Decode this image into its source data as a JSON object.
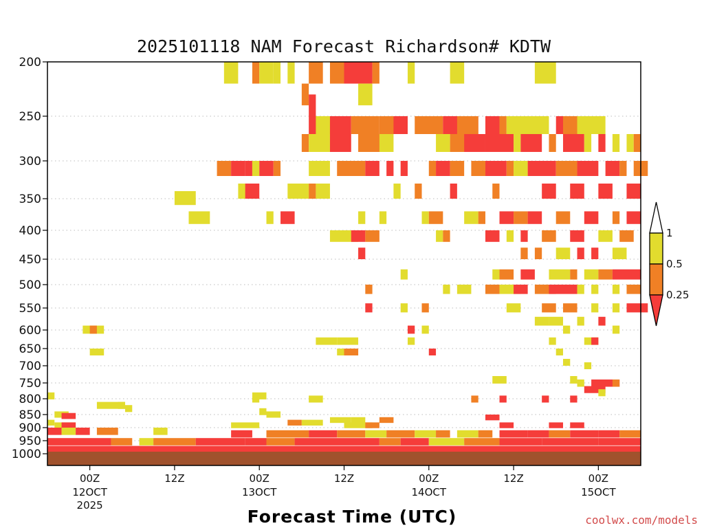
{
  "chart_data": {
    "type": "heatmap",
    "title": "2025101118 NAM Forecast Richardson# KDTW",
    "xlabel": "Forecast Time (UTC)",
    "ylabel": "",
    "y_ticks": [
      "200",
      "250",
      "300",
      "350",
      "400",
      "450",
      "500",
      "550",
      "600",
      "650",
      "700",
      "750",
      "800",
      "850",
      "900",
      "950",
      "1000"
    ],
    "x_ticks": [
      {
        "hour": 6,
        "label": "00Z",
        "sub": "12OCT",
        "sub2": "2025"
      },
      {
        "hour": 18,
        "label": "12Z"
      },
      {
        "hour": 30,
        "label": "00Z",
        "sub": "13OCT"
      },
      {
        "hour": 42,
        "label": "12Z"
      },
      {
        "hour": 54,
        "label": "00Z",
        "sub": "14OCT"
      },
      {
        "hour": 66,
        "label": "12Z"
      },
      {
        "hour": 78,
        "label": "00Z",
        "sub": "15OCT"
      }
    ],
    "xlim_hours": [
      0,
      84
    ],
    "ylim_hpa": [
      200,
      1020
    ],
    "legend": [
      {
        "label": "1",
        "color": "#ffffff"
      },
      {
        "label": "0.5",
        "color": "#e2dc2e"
      },
      {
        "label": "0.25",
        "color": "#f08025"
      },
      {
        "label": "",
        "color": "#f53d3a"
      }
    ],
    "colors": {
      "lt_0_25": "#f53d3a",
      "0_25_to_0_5": "#f08025",
      "0_5_to_1": "#e2dc2e",
      "ground": "#a0522d",
      "grid": "#bbbbbb"
    },
    "cells": [
      [
        25,
        200,
        2,
        "y"
      ],
      [
        29,
        200,
        1,
        "o"
      ],
      [
        30,
        200,
        2,
        "y"
      ],
      [
        32,
        200,
        1,
        "y"
      ],
      [
        34,
        200,
        1,
        "y"
      ],
      [
        37,
        200,
        2,
        "o"
      ],
      [
        40,
        200,
        2,
        "o"
      ],
      [
        42,
        200,
        4,
        "r"
      ],
      [
        46,
        200,
        1,
        "o"
      ],
      [
        51,
        200,
        1,
        "y"
      ],
      [
        57,
        200,
        2,
        "y"
      ],
      [
        69,
        200,
        3,
        "y"
      ],
      [
        36,
        220,
        1,
        "o"
      ],
      [
        44,
        220,
        2,
        "y"
      ],
      [
        37,
        230,
        1,
        "r"
      ],
      [
        37,
        250,
        6,
        "r"
      ],
      [
        38,
        250,
        2,
        "y"
      ],
      [
        43,
        250,
        4,
        "o"
      ],
      [
        47,
        250,
        4,
        "o"
      ],
      [
        49,
        250,
        2,
        "r"
      ],
      [
        52,
        250,
        4,
        "o"
      ],
      [
        56,
        250,
        5,
        "r"
      ],
      [
        58,
        250,
        3,
        "o"
      ],
      [
        62,
        250,
        2,
        "r"
      ],
      [
        64,
        250,
        1,
        "o"
      ],
      [
        65,
        250,
        3,
        "y"
      ],
      [
        67,
        250,
        4,
        "y"
      ],
      [
        72,
        250,
        3,
        "r"
      ],
      [
        73,
        250,
        3,
        "o"
      ],
      [
        75,
        250,
        4,
        "y"
      ],
      [
        36,
        270,
        1,
        "o"
      ],
      [
        37,
        270,
        3,
        "y"
      ],
      [
        40,
        270,
        3,
        "r"
      ],
      [
        44,
        270,
        4,
        "o"
      ],
      [
        47,
        270,
        2,
        "y"
      ],
      [
        55,
        270,
        2,
        "y"
      ],
      [
        57,
        270,
        3,
        "o"
      ],
      [
        59,
        270,
        3,
        "r"
      ],
      [
        62,
        270,
        4,
        "r"
      ],
      [
        66,
        270,
        1,
        "y"
      ],
      [
        67,
        270,
        3,
        "r"
      ],
      [
        71,
        270,
        1,
        "o"
      ],
      [
        73,
        270,
        3,
        "r"
      ],
      [
        76,
        270,
        1,
        "y"
      ],
      [
        78,
        270,
        1,
        "r"
      ],
      [
        80,
        270,
        1,
        "y"
      ],
      [
        82,
        270,
        1,
        "y"
      ],
      [
        83,
        270,
        1,
        "o"
      ],
      [
        24,
        300,
        2,
        "o"
      ],
      [
        26,
        300,
        2,
        "r"
      ],
      [
        28,
        300,
        1,
        "r"
      ],
      [
        29,
        300,
        1,
        "y"
      ],
      [
        30,
        300,
        2,
        "r"
      ],
      [
        32,
        300,
        1,
        "o"
      ],
      [
        37,
        300,
        3,
        "y"
      ],
      [
        41,
        300,
        4,
        "o"
      ],
      [
        45,
        300,
        2,
        "r"
      ],
      [
        48,
        300,
        1,
        "r"
      ],
      [
        50,
        300,
        1,
        "r"
      ],
      [
        54,
        300,
        1,
        "o"
      ],
      [
        55,
        300,
        2,
        "r"
      ],
      [
        57,
        300,
        2,
        "o"
      ],
      [
        60,
        300,
        2,
        "o"
      ],
      [
        62,
        300,
        3,
        "r"
      ],
      [
        65,
        300,
        1,
        "o"
      ],
      [
        66,
        300,
        2,
        "y"
      ],
      [
        68,
        300,
        4,
        "r"
      ],
      [
        72,
        300,
        3,
        "o"
      ],
      [
        75,
        300,
        3,
        "r"
      ],
      [
        79,
        300,
        2,
        "r"
      ],
      [
        81,
        300,
        1,
        "o"
      ],
      [
        83,
        300,
        2,
        "o"
      ],
      [
        27,
        330,
        2,
        "y"
      ],
      [
        28,
        330,
        2,
        "r"
      ],
      [
        34,
        330,
        3,
        "y"
      ],
      [
        37,
        330,
        1,
        "o"
      ],
      [
        38,
        330,
        2,
        "y"
      ],
      [
        49,
        330,
        1,
        "y"
      ],
      [
        52,
        330,
        1,
        "o"
      ],
      [
        57,
        330,
        1,
        "r"
      ],
      [
        63,
        330,
        1,
        "o"
      ],
      [
        70,
        330,
        2,
        "r"
      ],
      [
        74,
        330,
        2,
        "r"
      ],
      [
        78,
        330,
        2,
        "r"
      ],
      [
        82,
        330,
        2,
        "r"
      ],
      [
        18,
        340,
        3,
        "y"
      ],
      [
        20,
        370,
        3,
        "y"
      ],
      [
        31,
        370,
        1,
        "y"
      ],
      [
        33,
        370,
        2,
        "r"
      ],
      [
        44,
        370,
        1,
        "y"
      ],
      [
        47,
        370,
        1,
        "y"
      ],
      [
        53,
        370,
        1,
        "y"
      ],
      [
        54,
        370,
        2,
        "o"
      ],
      [
        59,
        370,
        2,
        "y"
      ],
      [
        61,
        370,
        1,
        "o"
      ],
      [
        64,
        370,
        2,
        "r"
      ],
      [
        66,
        370,
        2,
        "o"
      ],
      [
        68,
        370,
        2,
        "r"
      ],
      [
        72,
        370,
        2,
        "o"
      ],
      [
        76,
        370,
        2,
        "r"
      ],
      [
        80,
        370,
        1,
        "o"
      ],
      [
        82,
        370,
        2,
        "r"
      ],
      [
        40,
        400,
        4,
        "y"
      ],
      [
        43,
        400,
        2,
        "r"
      ],
      [
        45,
        400,
        2,
        "o"
      ],
      [
        55,
        400,
        1,
        "y"
      ],
      [
        56,
        400,
        1,
        "o"
      ],
      [
        62,
        400,
        2,
        "r"
      ],
      [
        65,
        400,
        1,
        "y"
      ],
      [
        67,
        400,
        1,
        "r"
      ],
      [
        70,
        400,
        2,
        "o"
      ],
      [
        74,
        400,
        2,
        "r"
      ],
      [
        78,
        400,
        2,
        "y"
      ],
      [
        81,
        400,
        2,
        "o"
      ],
      [
        44,
        430,
        1,
        "r"
      ],
      [
        67,
        430,
        1,
        "o"
      ],
      [
        69,
        430,
        1,
        "o"
      ],
      [
        72,
        430,
        2,
        "y"
      ],
      [
        75,
        430,
        1,
        "r"
      ],
      [
        77,
        430,
        1,
        "r"
      ],
      [
        80,
        430,
        2,
        "y"
      ],
      [
        50,
        470,
        1,
        "y"
      ],
      [
        63,
        470,
        1,
        "y"
      ],
      [
        64,
        470,
        2,
        "o"
      ],
      [
        67,
        470,
        2,
        "r"
      ],
      [
        71,
        470,
        3,
        "y"
      ],
      [
        74,
        470,
        1,
        "o"
      ],
      [
        76,
        470,
        2,
        "y"
      ],
      [
        78,
        470,
        2,
        "o"
      ],
      [
        80,
        470,
        4,
        "r"
      ],
      [
        45,
        500,
        1,
        "o"
      ],
      [
        56,
        500,
        1,
        "y"
      ],
      [
        58,
        500,
        2,
        "y"
      ],
      [
        62,
        500,
        2,
        "o"
      ],
      [
        64,
        500,
        3,
        "y"
      ],
      [
        66,
        500,
        2,
        "r"
      ],
      [
        69,
        500,
        3,
        "o"
      ],
      [
        71,
        500,
        4,
        "r"
      ],
      [
        75,
        500,
        1,
        "y"
      ],
      [
        77,
        500,
        1,
        "y"
      ],
      [
        80,
        500,
        1,
        "y"
      ],
      [
        82,
        500,
        2,
        "o"
      ],
      [
        45,
        540,
        1,
        "r"
      ],
      [
        50,
        540,
        1,
        "y"
      ],
      [
        53,
        540,
        1,
        "o"
      ],
      [
        65,
        540,
        2,
        "y"
      ],
      [
        70,
        540,
        2,
        "o"
      ],
      [
        73,
        540,
        2,
        "o"
      ],
      [
        77,
        540,
        1,
        "y"
      ],
      [
        80,
        540,
        1,
        "y"
      ],
      [
        82,
        540,
        3,
        "r"
      ],
      [
        69,
        570,
        2,
        "y"
      ],
      [
        71,
        570,
        2,
        "y"
      ],
      [
        75,
        570,
        1,
        "y"
      ],
      [
        78,
        570,
        1,
        "r"
      ],
      [
        5,
        590,
        3,
        "y"
      ],
      [
        6,
        590,
        1,
        "o"
      ],
      [
        51,
        590,
        1,
        "r"
      ],
      [
        53,
        590,
        1,
        "y"
      ],
      [
        73,
        590,
        1,
        "y"
      ],
      [
        80,
        590,
        1,
        "y"
      ],
      [
        38,
        620,
        3,
        "y"
      ],
      [
        41,
        620,
        3,
        "y"
      ],
      [
        51,
        620,
        1,
        "y"
      ],
      [
        71,
        620,
        1,
        "y"
      ],
      [
        76,
        620,
        2,
        "y"
      ],
      [
        77,
        620,
        1,
        "r"
      ],
      [
        6,
        650,
        2,
        "y"
      ],
      [
        41,
        650,
        3,
        "y"
      ],
      [
        42,
        650,
        2,
        "o"
      ],
      [
        54,
        650,
        1,
        "r"
      ],
      [
        72,
        650,
        1,
        "y"
      ],
      [
        73,
        680,
        1,
        "y"
      ],
      [
        76,
        690,
        1,
        "y"
      ],
      [
        63,
        730,
        2,
        "y"
      ],
      [
        74,
        730,
        1,
        "y"
      ],
      [
        75,
        740,
        1,
        "y"
      ],
      [
        77,
        740,
        4,
        "r"
      ],
      [
        80,
        740,
        1,
        "o"
      ],
      [
        76,
        760,
        3,
        "r"
      ],
      [
        78,
        770,
        1,
        "y"
      ],
      [
        0,
        780,
        1,
        "y"
      ],
      [
        29,
        780,
        2,
        "y"
      ],
      [
        29,
        790,
        1,
        "y"
      ],
      [
        37,
        790,
        2,
        "y"
      ],
      [
        60,
        790,
        1,
        "o"
      ],
      [
        64,
        790,
        1,
        "r"
      ],
      [
        70,
        790,
        1,
        "r"
      ],
      [
        74,
        790,
        1,
        "r"
      ],
      [
        7,
        810,
        4,
        "y"
      ],
      [
        10,
        810,
        1,
        "y"
      ],
      [
        11,
        820,
        1,
        "y"
      ],
      [
        1,
        840,
        2,
        "y"
      ],
      [
        2,
        845,
        2,
        "r"
      ],
      [
        30,
        830,
        1,
        "y"
      ],
      [
        31,
        840,
        2,
        "y"
      ],
      [
        62,
        850,
        2,
        "r"
      ],
      [
        40,
        860,
        3,
        "y"
      ],
      [
        43,
        860,
        2,
        "y"
      ],
      [
        47,
        860,
        2,
        "o"
      ],
      [
        0,
        870,
        1,
        "y"
      ],
      [
        1,
        880,
        3,
        "y"
      ],
      [
        2,
        880,
        2,
        "r"
      ],
      [
        26,
        880,
        4,
        "y"
      ],
      [
        34,
        870,
        2,
        "o"
      ],
      [
        36,
        870,
        3,
        "y"
      ],
      [
        42,
        880,
        4,
        "y"
      ],
      [
        45,
        880,
        2,
        "o"
      ],
      [
        64,
        880,
        2,
        "r"
      ],
      [
        71,
        880,
        2,
        "r"
      ],
      [
        74,
        880,
        2,
        "r"
      ],
      [
        0,
        900,
        2,
        "r"
      ],
      [
        2,
        900,
        2,
        "y"
      ],
      [
        4,
        900,
        2,
        "r"
      ],
      [
        7,
        900,
        3,
        "o"
      ],
      [
        15,
        900,
        2,
        "y"
      ],
      [
        26,
        910,
        3,
        "r"
      ],
      [
        31,
        910,
        6,
        "o"
      ],
      [
        37,
        910,
        4,
        "r"
      ],
      [
        41,
        910,
        4,
        "o"
      ],
      [
        45,
        910,
        3,
        "y"
      ],
      [
        48,
        910,
        4,
        "o"
      ],
      [
        52,
        910,
        3,
        "y"
      ],
      [
        55,
        910,
        2,
        "o"
      ],
      [
        58,
        910,
        3,
        "y"
      ],
      [
        61,
        910,
        2,
        "o"
      ],
      [
        64,
        910,
        4,
        "r"
      ],
      [
        68,
        910,
        3,
        "r"
      ],
      [
        71,
        910,
        3,
        "o"
      ],
      [
        74,
        910,
        4,
        "r"
      ],
      [
        78,
        910,
        3,
        "r"
      ],
      [
        81,
        910,
        3,
        "o"
      ],
      [
        0,
        940,
        9,
        "r"
      ],
      [
        9,
        940,
        3,
        "o"
      ],
      [
        13,
        940,
        2,
        "y"
      ],
      [
        15,
        940,
        6,
        "o"
      ],
      [
        21,
        940,
        7,
        "r"
      ],
      [
        28,
        940,
        3,
        "r"
      ],
      [
        31,
        940,
        4,
        "o"
      ],
      [
        35,
        940,
        7,
        "r"
      ],
      [
        42,
        940,
        5,
        "r"
      ],
      [
        47,
        940,
        3,
        "o"
      ],
      [
        50,
        940,
        4,
        "r"
      ],
      [
        54,
        940,
        5,
        "y"
      ],
      [
        59,
        940,
        5,
        "o"
      ],
      [
        64,
        940,
        6,
        "r"
      ],
      [
        70,
        940,
        8,
        "r"
      ],
      [
        78,
        940,
        6,
        "r"
      ],
      [
        0,
        970,
        84,
        "r"
      ]
    ]
  },
  "credit": "coolwx.com/models"
}
